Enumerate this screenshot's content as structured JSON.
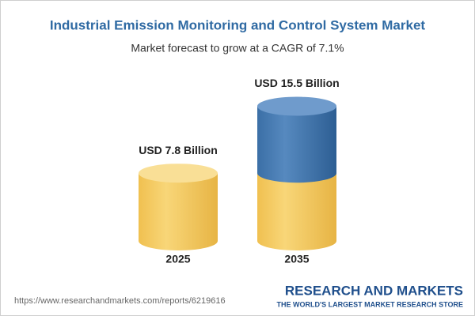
{
  "chart_data": {
    "type": "cylinder",
    "title": "Industrial Emission Monitoring and Control System Market",
    "subtitle": "Market forecast to grow at a CAGR of 7.1%",
    "categories": [
      "2025",
      "2035"
    ],
    "values": [
      7.8,
      15.5
    ],
    "value_labels": [
      "USD 7.8 Billion",
      "USD 15.5 Billion"
    ],
    "colors": [
      "#f3c55a",
      "#3f76ae"
    ]
  },
  "footer": {
    "url": "https://www.researchandmarkets.com/reports/6219616",
    "brand": "RESEARCH AND MARKETS",
    "tagline": "THE WORLD'S LARGEST MARKET RESEARCH STORE"
  }
}
